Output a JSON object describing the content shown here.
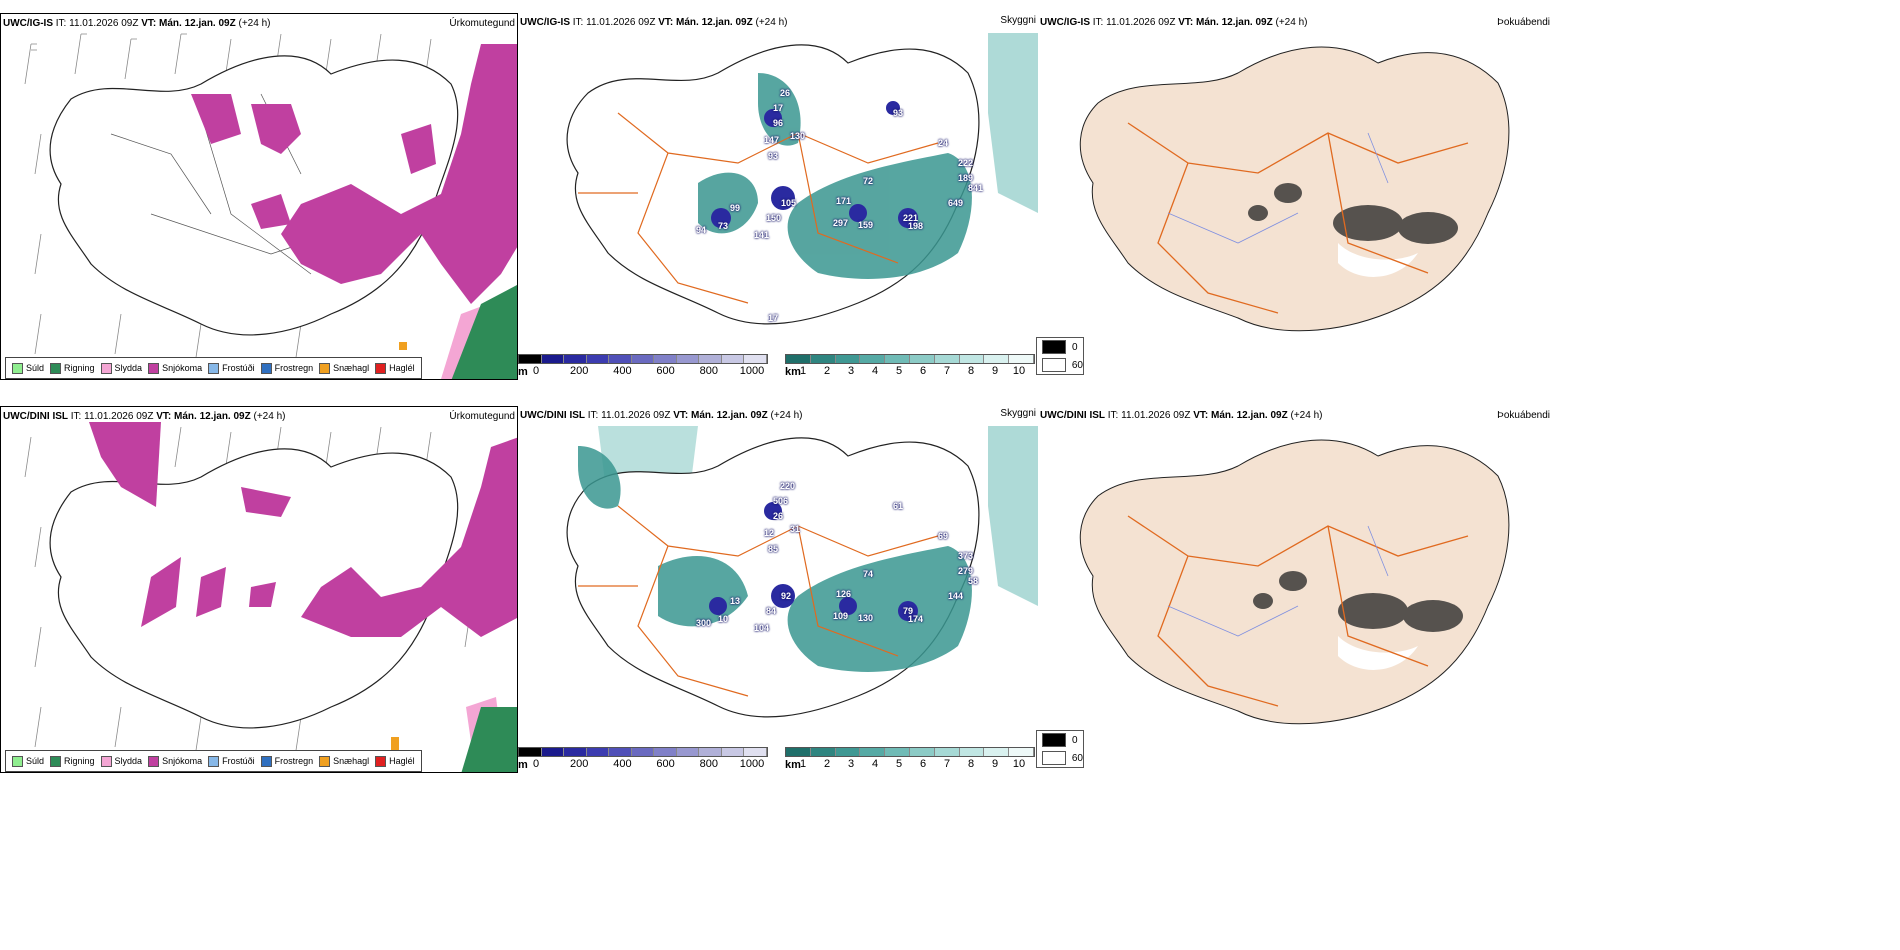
{
  "rows": [
    {
      "model": "UWC/IG-IS",
      "issue_label": "IT:",
      "issue_time": "11.01.2026 09Z",
      "valid_label": "VT:",
      "valid_time": "Mán. 12.jan. 09Z",
      "lead": "(+24 h)",
      "precip_title": "Úrkomutegund",
      "cloud_title": "Skyggni",
      "dew_title": "Þokuábendi",
      "cloud_labels": [
        "17",
        "26",
        "96",
        "130",
        "147",
        "93",
        "105",
        "99",
        "73",
        "94",
        "141",
        "150",
        "171",
        "72",
        "297",
        "159",
        "221",
        "198",
        "649",
        "222",
        "189",
        "841",
        "24",
        "93",
        "17"
      ]
    },
    {
      "model": "UWC/DINI ISL",
      "issue_label": "IT:",
      "issue_time": "11.01.2026 09Z",
      "valid_label": "VT:",
      "valid_time": "Mán. 12.jan. 09Z",
      "lead": "(+24 h)",
      "precip_title": "Úrkomutegund",
      "cloud_title": "Skyggni",
      "dew_title": "Þokuábendi",
      "cloud_labels": [
        "506",
        "220",
        "26",
        "31",
        "12",
        "85",
        "92",
        "13",
        "10",
        "300",
        "104",
        "84",
        "126",
        "74",
        "109",
        "130",
        "79",
        "174",
        "144",
        "373",
        "279",
        "58",
        "69",
        "61"
      ]
    }
  ],
  "precip_legend": [
    {
      "label": "Súld",
      "color": "#90ee90"
    },
    {
      "label": "Rigning",
      "color": "#2e8b57"
    },
    {
      "label": "Slydda",
      "color": "#f4a6d4"
    },
    {
      "label": "Snjókoma",
      "color": "#c040a0"
    },
    {
      "label": "Frostúði",
      "color": "#87b8e8"
    },
    {
      "label": "Frostregn",
      "color": "#3070c0"
    },
    {
      "label": "Snæhagl",
      "color": "#f0a020"
    },
    {
      "label": "Haglél",
      "color": "#e02020"
    }
  ],
  "cloudbase_scale": {
    "unit": "m",
    "ticks": [
      "0",
      "200",
      "400",
      "600",
      "800",
      "1000"
    ],
    "colors": [
      "#000000",
      "#1a1a8c",
      "#2a2aa0",
      "#3c3cb0",
      "#5050b8",
      "#6a6ac0",
      "#8080c8",
      "#9898d0",
      "#b0b0d8",
      "#c8c8e4",
      "#e0e0f0"
    ]
  },
  "visibility_scale": {
    "unit": "km",
    "ticks": [
      "1",
      "2",
      "3",
      "4",
      "5",
      "6",
      "7",
      "8",
      "9",
      "10"
    ],
    "colors": [
      "#1f6f6a",
      "#2f8580",
      "#3f9893",
      "#56aaa5",
      "#70bbb6",
      "#8ccbc6",
      "#a6d9d5",
      "#c0e6e3",
      "#d9f1ef",
      "#eef9f8"
    ]
  },
  "dew_key": {
    "entries": [
      {
        "value": "0",
        "color": "#000000"
      },
      {
        "value": "60",
        "color": "#ffffff"
      }
    ]
  },
  "colors": {
    "snow": "#c040a0",
    "sleet": "#f4a6d4",
    "rain": "#2e8b57",
    "teal": "#3a9690",
    "land": "#f4e2d2",
    "road": "#e06a20",
    "cloud": "#2a2aa0"
  }
}
